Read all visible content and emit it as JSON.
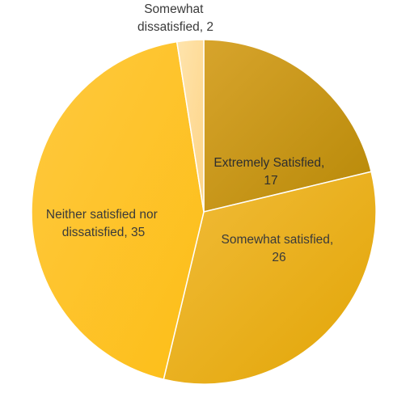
{
  "chart_data": {
    "type": "pie",
    "title": "",
    "slices": [
      {
        "label": "Extremely Satisfied",
        "value": 17,
        "color": "#C59413",
        "text_lines": [
          "Extremely Satisfied,",
          "17"
        ]
      },
      {
        "label": "Somewhat satisfied",
        "value": 26,
        "color": "#E7AE13",
        "text_lines": [
          "Somewhat satisfied,",
          "26"
        ]
      },
      {
        "label": "Neither satisfied nor dissatisfied",
        "value": 35,
        "color": "#FDC227",
        "text_lines": [
          "Neither satisfied nor",
          "dissatisfied, 35"
        ]
      },
      {
        "label": "Somewhat dissatisfied",
        "value": 2,
        "color": "#FDDB96",
        "text_lines": [
          "Somewhat",
          "dissatisfied, 2"
        ]
      }
    ],
    "start_angle": "12 o'clock",
    "direction": "clockwise",
    "legend": "none",
    "data_labels": "category name and value"
  }
}
